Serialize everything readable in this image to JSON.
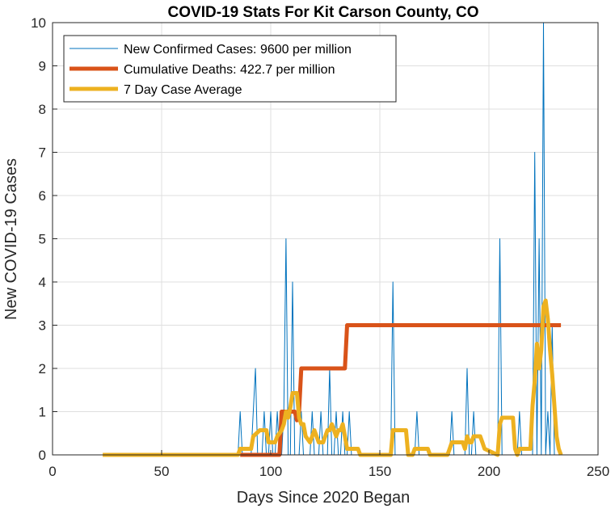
{
  "chart_data": {
    "type": "line",
    "title": "COVID-19 Stats For Kit Carson County, CO",
    "xlabel": "Days Since 2020 Began",
    "ylabel": "New COVID-19 Cases",
    "xlim": [
      0,
      250
    ],
    "ylim": [
      0,
      10
    ],
    "xticks": [
      0,
      50,
      100,
      150,
      200,
      250
    ],
    "yticks": [
      0,
      1,
      2,
      3,
      4,
      5,
      6,
      7,
      8,
      9,
      10
    ],
    "grid": true,
    "legend_position": "top-left",
    "series": [
      {
        "name": "New Confirmed Cases: 9600 per million",
        "color": "#0072BD",
        "style": "thin",
        "points": [
          [
            23,
            0
          ],
          [
            84,
            0
          ],
          [
            85,
            0
          ],
          [
            86,
            1
          ],
          [
            87,
            0
          ],
          [
            91,
            0
          ],
          [
            92,
            1
          ],
          [
            93,
            2
          ],
          [
            94,
            0
          ],
          [
            96,
            0
          ],
          [
            97,
            1
          ],
          [
            98,
            0
          ],
          [
            99,
            0
          ],
          [
            100,
            1
          ],
          [
            101,
            0
          ],
          [
            102,
            0
          ],
          [
            103,
            1
          ],
          [
            104,
            0
          ],
          [
            105,
            0
          ],
          [
            106,
            1
          ],
          [
            107,
            5
          ],
          [
            108,
            0
          ],
          [
            109,
            0
          ],
          [
            110,
            4
          ],
          [
            111,
            0
          ],
          [
            113,
            0
          ],
          [
            114,
            1
          ],
          [
            115,
            0
          ],
          [
            118,
            0
          ],
          [
            119,
            1
          ],
          [
            120,
            0
          ],
          [
            122,
            0
          ],
          [
            123,
            1
          ],
          [
            124,
            0
          ],
          [
            126,
            0
          ],
          [
            127,
            2
          ],
          [
            128,
            0
          ],
          [
            129,
            0
          ],
          [
            130,
            1
          ],
          [
            131,
            0
          ],
          [
            132,
            0
          ],
          [
            133,
            1
          ],
          [
            134,
            0
          ],
          [
            135,
            0
          ],
          [
            136,
            1
          ],
          [
            137,
            0
          ],
          [
            155,
            0
          ],
          [
            156,
            4
          ],
          [
            157,
            0
          ],
          [
            166,
            0
          ],
          [
            167,
            1
          ],
          [
            168,
            0
          ],
          [
            182,
            0
          ],
          [
            183,
            1
          ],
          [
            184,
            0
          ],
          [
            189,
            0
          ],
          [
            190,
            2
          ],
          [
            191,
            0
          ],
          [
            192,
            0
          ],
          [
            193,
            1
          ],
          [
            194,
            0
          ],
          [
            204,
            0
          ],
          [
            205,
            5
          ],
          [
            206,
            0
          ],
          [
            213,
            0
          ],
          [
            214,
            1
          ],
          [
            215,
            0
          ],
          [
            220,
            0
          ],
          [
            221,
            7
          ],
          [
            222,
            0
          ],
          [
            223,
            5
          ],
          [
            224,
            0
          ],
          [
            225,
            10
          ],
          [
            226,
            0
          ],
          [
            227,
            1
          ],
          [
            228,
            0
          ],
          [
            229,
            3
          ],
          [
            230,
            0
          ],
          [
            233,
            0
          ]
        ]
      },
      {
        "name": "Cumulative Deaths: 422.7 per million",
        "color": "#D95319",
        "style": "thick",
        "points": [
          [
            86,
            0
          ],
          [
            104,
            0
          ],
          [
            105,
            1
          ],
          [
            111,
            1
          ],
          [
            112,
            0.8
          ],
          [
            113,
            1
          ],
          [
            114,
            2
          ],
          [
            133,
            2
          ],
          [
            134,
            2
          ],
          [
            135,
            3
          ],
          [
            233,
            3
          ]
        ]
      },
      {
        "name": "7 Day Case Average",
        "color": "#EDB120",
        "style": "thick",
        "points": [
          [
            23,
            0
          ],
          [
            85,
            0
          ],
          [
            86,
            0.14
          ],
          [
            91,
            0.14
          ],
          [
            92,
            0.43
          ],
          [
            95,
            0.57
          ],
          [
            98,
            0.57
          ],
          [
            99,
            0.29
          ],
          [
            102,
            0.29
          ],
          [
            103,
            0.43
          ],
          [
            105,
            0.57
          ],
          [
            106,
            0.71
          ],
          [
            107,
            1
          ],
          [
            108,
            0.86
          ],
          [
            109,
            1.1
          ],
          [
            110,
            1.43
          ],
          [
            112,
            1.43
          ],
          [
            113,
            0.86
          ],
          [
            114,
            0.71
          ],
          [
            115,
            0.71
          ],
          [
            116,
            0.43
          ],
          [
            118,
            0.29
          ],
          [
            119,
            0.43
          ],
          [
            120,
            0.57
          ],
          [
            121,
            0.43
          ],
          [
            122,
            0.29
          ],
          [
            124,
            0.29
          ],
          [
            125,
            0.43
          ],
          [
            126,
            0.57
          ],
          [
            127,
            0.57
          ],
          [
            128,
            0.71
          ],
          [
            129,
            0.57
          ],
          [
            130,
            0.43
          ],
          [
            131,
            0.57
          ],
          [
            132,
            0.57
          ],
          [
            133,
            0.71
          ],
          [
            134,
            0.43
          ],
          [
            135,
            0.14
          ],
          [
            140,
            0.14
          ],
          [
            141,
            0
          ],
          [
            155,
            0
          ],
          [
            156,
            0.57
          ],
          [
            162,
            0.57
          ],
          [
            163,
            0
          ],
          [
            165,
            0
          ],
          [
            166,
            0.14
          ],
          [
            172,
            0.14
          ],
          [
            173,
            0
          ],
          [
            181,
            0
          ],
          [
            182,
            0.14
          ],
          [
            183,
            0.29
          ],
          [
            188,
            0.29
          ],
          [
            189,
            0.14
          ],
          [
            190,
            0.43
          ],
          [
            191,
            0.29
          ],
          [
            192,
            0.29
          ],
          [
            193,
            0.43
          ],
          [
            196,
            0.43
          ],
          [
            197,
            0.29
          ],
          [
            198,
            0.14
          ],
          [
            204,
            0
          ],
          [
            205,
            0.71
          ],
          [
            206,
            0.86
          ],
          [
            211,
            0.86
          ],
          [
            212,
            0.14
          ],
          [
            213,
            0
          ],
          [
            214,
            0.14
          ],
          [
            219,
            0.14
          ],
          [
            220,
            1.14
          ],
          [
            221,
            1.71
          ],
          [
            222,
            2.57
          ],
          [
            223,
            2
          ],
          [
            224,
            2.43
          ],
          [
            225,
            3.43
          ],
          [
            226,
            3.57
          ],
          [
            227,
            3.14
          ],
          [
            228,
            2.43
          ],
          [
            229,
            1.86
          ],
          [
            230,
            1.14
          ],
          [
            231,
            0.43
          ],
          [
            232,
            0.14
          ],
          [
            233,
            0
          ]
        ]
      }
    ]
  }
}
